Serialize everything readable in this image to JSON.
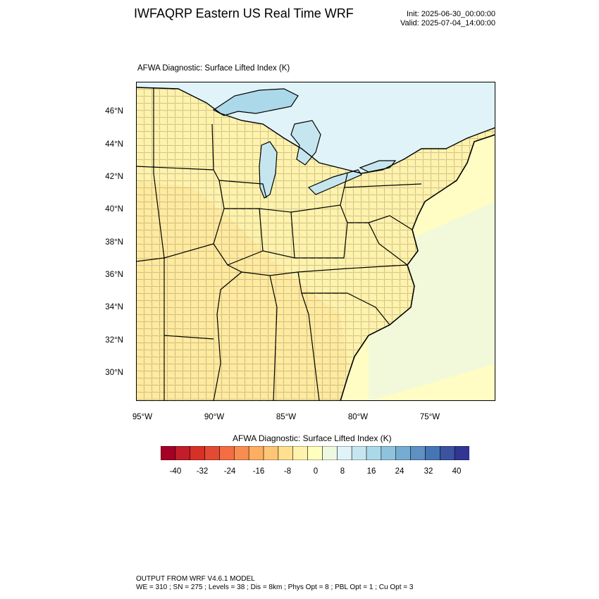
{
  "header": {
    "title": "IWFAQRP Eastern US Real Time WRF",
    "init": "Init: 2025-06-30_00:00:00",
    "valid": "Valid: 2025-07-04_14:00:00"
  },
  "plot": {
    "title": "AFWA Diagnostic: Surface Lifted Index   (K)",
    "lat_labels": [
      "46°N",
      "44°N",
      "42°N",
      "40°N",
      "38°N",
      "36°N",
      "34°N",
      "32°N",
      "30°N"
    ],
    "lon_labels": [
      "95°W",
      "90°W",
      "85°W",
      "80°W",
      "75°W"
    ]
  },
  "colorbar": {
    "title": "AFWA Diagnostic: Surface Lifted Index  (K)",
    "tick_labels": [
      "-40",
      "-32",
      "-24",
      "-16",
      "-8",
      "0",
      "8",
      "16",
      "24",
      "32",
      "40"
    ],
    "colors": [
      "#a50026",
      "#c11d2a",
      "#d73027",
      "#e34a33",
      "#f46d43",
      "#f88d52",
      "#fdae61",
      "#fdc576",
      "#fee090",
      "#fff2ac",
      "#ffffbf",
      "#eef8e0",
      "#e0f3f8",
      "#c6e6ef",
      "#abd9e9",
      "#8fc3dd",
      "#74add1",
      "#5f90c2",
      "#4575b4",
      "#3b53a0",
      "#313695"
    ]
  },
  "map_colors": {
    "land_fill": "#fff2ac",
    "land_warm": "#fee090",
    "ocean_fill": "#fffcc4",
    "ocean_cool": "#eef8e0",
    "lake_fill": "#c6e6ef",
    "lake_deep": "#abd9e9",
    "north_fill": "#e0f3f8"
  },
  "footer": {
    "line1": "OUTPUT FROM WRF V4.6.1 MODEL",
    "line2": "WE = 310 ; SN = 275 ; Levels = 38 ; Dis = 8km ; Phys Opt = 8 ; PBL Opt = 1 ; Cu Opt = 3"
  }
}
